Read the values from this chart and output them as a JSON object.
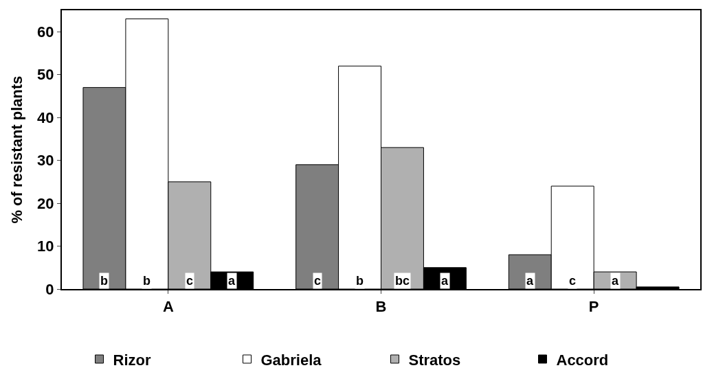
{
  "chart_data": {
    "type": "bar",
    "ylabel": "% of resistant plants",
    "categories": [
      "A",
      "B",
      "P"
    ],
    "series": [
      {
        "name": "Rizor",
        "color": "#7f7f7f",
        "values": [
          47,
          29,
          8
        ],
        "value_labels": [
          "b",
          "c",
          "a"
        ]
      },
      {
        "name": "Gabriela",
        "color": "#ffffff",
        "values": [
          63,
          52,
          24
        ],
        "value_labels": [
          "b",
          "b",
          "c"
        ]
      },
      {
        "name": "Stratos",
        "color": "#b0b0b0",
        "values": [
          25,
          33,
          4
        ],
        "value_labels": [
          "c",
          "bc",
          "a"
        ]
      },
      {
        "name": "Accord",
        "color": "#000000",
        "values": [
          4,
          5,
          0.5
        ],
        "value_labels": [
          "a",
          "a",
          null
        ]
      }
    ],
    "ylim": [
      0,
      65
    ],
    "yticks": [
      0,
      10,
      20,
      30,
      40,
      50,
      60
    ],
    "legend": "bottom"
  }
}
